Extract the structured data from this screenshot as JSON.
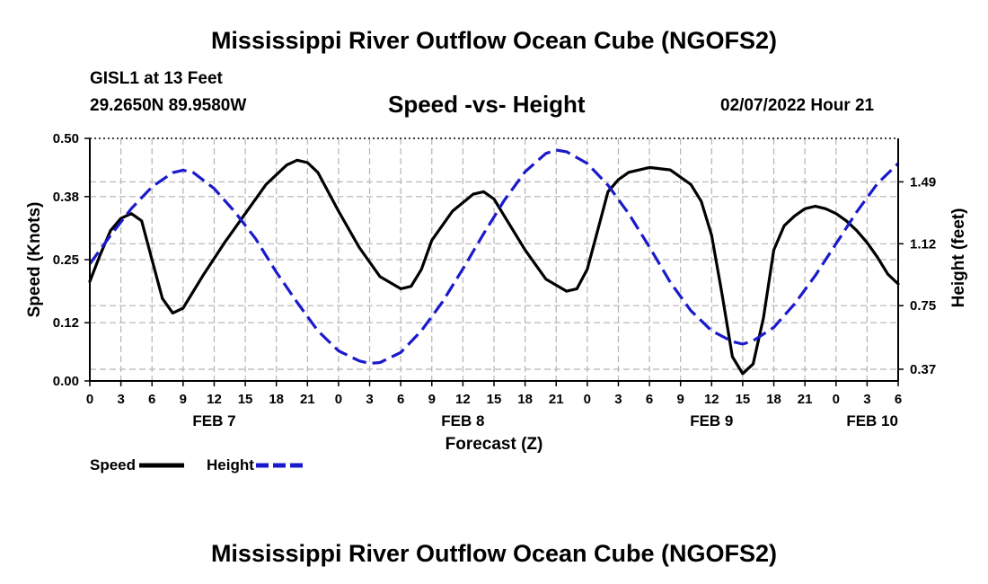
{
  "header": {
    "title": "Mississippi River Outflow Ocean Cube (NGOFS2)",
    "station": "GISL1 at 13 Feet",
    "coords": "29.2650N  89.9580W",
    "subtitle": "Speed -vs- Height",
    "timestamp": "02/07/2022 Hour 21"
  },
  "footer": {
    "title": "Mississippi River Outflow Ocean Cube (NGOFS2)"
  },
  "legend": {
    "speed_label": "Speed",
    "height_label": "Height"
  },
  "colors": {
    "speed": "#000000",
    "height": "#1a1acc",
    "grid": "#b4b4b4"
  },
  "chart_data": {
    "type": "line",
    "title": "Speed -vs- Height",
    "xlabel": "Forecast (Z)",
    "ylabel": "Speed (Knots)",
    "y2label": "Height (feet)",
    "x_unit": "hours from FEB 7 00Z",
    "xlim": [
      0,
      78
    ],
    "ylim": [
      0,
      0.5
    ],
    "y2lim": [
      0.3,
      1.75
    ],
    "x_ticks": [
      0,
      3,
      6,
      9,
      12,
      15,
      18,
      21,
      24,
      27,
      30,
      33,
      36,
      39,
      42,
      45,
      48,
      51,
      54,
      57,
      60,
      63,
      66,
      69,
      72,
      75,
      78
    ],
    "x_tick_labels": [
      "0",
      "3",
      "6",
      "9",
      "12",
      "15",
      "18",
      "21",
      "0",
      "3",
      "6",
      "9",
      "12",
      "15",
      "18",
      "21",
      "0",
      "3",
      "6",
      "9",
      "12",
      "15",
      "18",
      "21",
      "0",
      "3",
      "6"
    ],
    "date_labels": [
      {
        "hour": 12,
        "label": "FEB 7"
      },
      {
        "hour": 36,
        "label": "FEB 8"
      },
      {
        "hour": 60,
        "label": "FEB 9"
      },
      {
        "hour": 75.5,
        "label": "FEB 10"
      }
    ],
    "y_ticks": [
      0.0,
      0.12,
      0.25,
      0.38,
      0.5
    ],
    "y_tick_labels": [
      "0.00",
      "0.12",
      "0.25",
      "0.38",
      "0.50"
    ],
    "y2_ticks": [
      0.37,
      0.75,
      1.12,
      1.49
    ],
    "y2_tick_labels": [
      "0.37",
      "0.75",
      "1.12",
      "1.49"
    ],
    "grid": true,
    "series": [
      {
        "name": "Speed",
        "axis": "left",
        "style": "solid",
        "x": [
          0,
          1,
          2,
          3,
          4,
          5,
          6,
          7,
          8,
          9,
          11,
          13,
          15,
          17,
          19,
          20,
          21,
          22,
          24,
          26,
          28,
          30,
          31,
          32,
          33,
          35,
          37,
          38,
          39,
          40,
          42,
          44,
          46,
          47,
          48,
          49,
          50,
          51,
          52,
          54,
          56,
          58,
          59,
          60,
          61,
          62,
          63,
          64,
          65,
          66,
          67,
          68,
          69,
          70,
          71,
          72,
          73,
          74,
          75,
          76,
          77,
          78
        ],
        "values": [
          0.205,
          0.26,
          0.31,
          0.335,
          0.345,
          0.33,
          0.25,
          0.17,
          0.14,
          0.15,
          0.22,
          0.285,
          0.345,
          0.405,
          0.445,
          0.455,
          0.45,
          0.43,
          0.35,
          0.275,
          0.215,
          0.19,
          0.195,
          0.23,
          0.29,
          0.35,
          0.385,
          0.39,
          0.375,
          0.34,
          0.27,
          0.21,
          0.185,
          0.19,
          0.23,
          0.31,
          0.39,
          0.415,
          0.43,
          0.44,
          0.435,
          0.405,
          0.37,
          0.3,
          0.18,
          0.05,
          0.015,
          0.035,
          0.13,
          0.27,
          0.32,
          0.34,
          0.355,
          0.36,
          0.355,
          0.345,
          0.33,
          0.31,
          0.285,
          0.255,
          0.22,
          0.2
        ]
      },
      {
        "name": "Height",
        "axis": "right",
        "style": "dashed",
        "x": [
          0,
          2,
          4,
          6,
          8,
          9,
          10,
          12,
          14,
          16,
          18,
          20,
          22,
          24,
          26,
          27,
          28,
          30,
          32,
          34,
          36,
          38,
          40,
          42,
          44,
          45,
          46,
          48,
          50,
          52,
          54,
          56,
          58,
          60,
          62,
          63,
          64,
          66,
          68,
          70,
          72,
          74,
          76,
          78
        ],
        "values": [
          1.0,
          1.17,
          1.33,
          1.46,
          1.545,
          1.56,
          1.545,
          1.45,
          1.31,
          1.15,
          0.95,
          0.77,
          0.6,
          0.48,
          0.42,
          0.405,
          0.41,
          0.47,
          0.6,
          0.77,
          0.97,
          1.18,
          1.38,
          1.55,
          1.66,
          1.68,
          1.67,
          1.6,
          1.47,
          1.3,
          1.1,
          0.89,
          0.72,
          0.6,
          0.535,
          0.52,
          0.54,
          0.62,
          0.76,
          0.93,
          1.12,
          1.31,
          1.48,
          1.6
        ]
      }
    ]
  }
}
